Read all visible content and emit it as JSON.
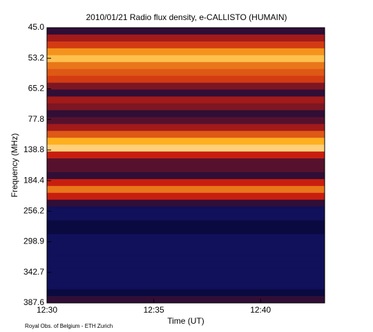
{
  "chart_data": {
    "type": "spectrogram",
    "title": "2010/01/21  Radio flux density, e-CALLISTO (HUMAIN)",
    "x_label": "Time (UT)",
    "y_label": "Frequency (MHz)",
    "footer": "Royal Obs. of Belgium - ETH Zurich",
    "xlim": [
      "12:30",
      "12:43"
    ],
    "xticks": [
      "12:30",
      "12:35",
      "12:40"
    ],
    "y_labels": [
      "45.0",
      "53.2",
      "65.2",
      "77.8",
      "138.8",
      "184.4",
      "256.2",
      "298.9",
      "342.7",
      "387.6"
    ],
    "colorscale": [
      "#2626c8",
      "#0a0a40",
      "#c81e10",
      "#ffb020",
      "#ffffff"
    ],
    "values": [
      0.3,
      0.45,
      0.55,
      0.7,
      0.8,
      0.65,
      0.6,
      0.55,
      0.4,
      0.3,
      0.45,
      0.4,
      0.3,
      0.35,
      0.45,
      0.6,
      0.75,
      0.85,
      0.5,
      0.35,
      0.35,
      0.3,
      0.5,
      0.65,
      0.5,
      0.3,
      0.2,
      0.2,
      0.25,
      0.25,
      0.2,
      0.2,
      0.2,
      0.2,
      0.2,
      0.2,
      0.2,
      0.2,
      0.25,
      0.3
    ]
  }
}
